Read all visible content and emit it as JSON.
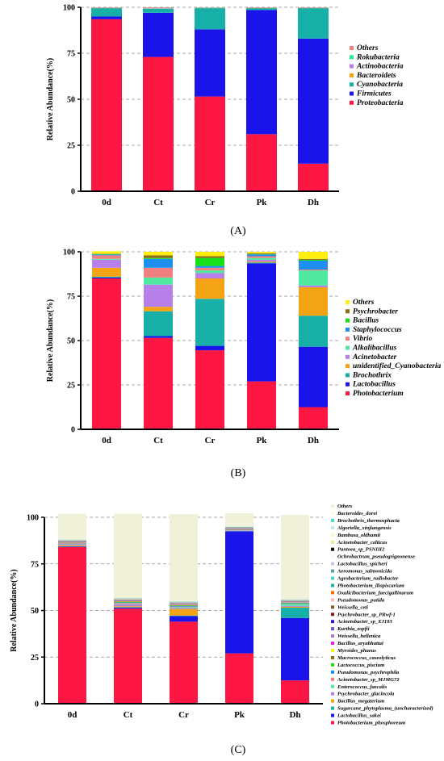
{
  "panel_labels": [
    "(A)",
    "(B)",
    "(C)"
  ],
  "chart_data": [
    {
      "type": "bar",
      "stacked": true,
      "ylabel": "Relative Abundance(%)",
      "ylim": [
        0,
        100
      ],
      "yticks": [
        0,
        25,
        50,
        75,
        100
      ],
      "grid": "dashed horizontal",
      "legend_position": "right",
      "categories": [
        "0d",
        "Ct",
        "Cr",
        "Pk",
        "Dh"
      ],
      "series": [
        {
          "name": "Proteobacteria",
          "color": "#ff1744",
          "values": [
            93.5,
            73,
            51.5,
            31,
            15
          ]
        },
        {
          "name": "Firmicutes",
          "color": "#1a14ea",
          "values": [
            1.5,
            24,
            36.5,
            67.5,
            68
          ]
        },
        {
          "name": "Cyanobacteria",
          "color": "#17b0a8",
          "values": [
            4.5,
            2.2,
            11.5,
            1,
            16.5
          ]
        },
        {
          "name": "Bacteroidets",
          "color": "#f4a314",
          "values": [
            0.1,
            0.1,
            0.1,
            0.1,
            0.1
          ]
        },
        {
          "name": "Actinobacteria",
          "color": "#b680e8",
          "values": [
            0.1,
            0.2,
            0.1,
            0.1,
            0.1
          ]
        },
        {
          "name": "Rokubacteria",
          "color": "#2ee89a",
          "values": [
            0.1,
            0.2,
            0.2,
            0.1,
            0.1
          ]
        },
        {
          "name": "Others",
          "color": "#f08080",
          "values": [
            0.2,
            0.3,
            0.1,
            0.2,
            0.2
          ]
        }
      ]
    },
    {
      "type": "bar",
      "stacked": true,
      "ylabel": "Relative Abundance(%)",
      "ylim": [
        0,
        100
      ],
      "yticks": [
        0,
        25,
        50,
        75,
        100
      ],
      "grid": "dashed horizontal",
      "legend_position": "right",
      "categories": [
        "0d",
        "Ct",
        "Cr",
        "Pk",
        "Dh"
      ],
      "series": [
        {
          "name": "Photobacterium",
          "color": "#ff1744",
          "values": [
            85,
            51.5,
            44.5,
            27,
            12.5
          ]
        },
        {
          "name": "Lactobacillus",
          "color": "#1a14ea",
          "values": [
            0.5,
            1,
            2.5,
            66.5,
            34
          ]
        },
        {
          "name": "Brochothrix",
          "color": "#17b0a8",
          "values": [
            0.5,
            14,
            26.5,
            0.5,
            17.5
          ]
        },
        {
          "name": "unidentified_Cyanobacteria",
          "color": "#f4a314",
          "values": [
            5,
            2.5,
            11.5,
            0.5,
            16
          ]
        },
        {
          "name": "Acinetobacter",
          "color": "#b680e8",
          "values": [
            4.5,
            12.5,
            3,
            1,
            1
          ]
        },
        {
          "name": "Alkalibacillus",
          "color": "#4ee8a0",
          "values": [
            0.5,
            4,
            1.5,
            1,
            8.5
          ]
        },
        {
          "name": "Vibrio",
          "color": "#f08080",
          "values": [
            2,
            5.5,
            1.5,
            1,
            0.5
          ]
        },
        {
          "name": "Staphylococcus",
          "color": "#1e8ff0",
          "values": [
            0.5,
            5,
            1,
            1,
            5
          ]
        },
        {
          "name": "Bacillus",
          "color": "#18e018",
          "values": [
            0.2,
            0.5,
            4.5,
            0.2,
            0.5
          ]
        },
        {
          "name": "Psychrobacter",
          "color": "#8a6d16",
          "values": [
            0.2,
            1.5,
            1,
            0.5,
            0.5
          ]
        },
        {
          "name": "Others",
          "color": "#ffee10",
          "values": [
            1.4,
            2,
            2.5,
            0.8,
            4
          ]
        }
      ]
    },
    {
      "type": "bar",
      "stacked": true,
      "ylabel": "Relative Abundance(%)",
      "ylim": [
        0,
        100
      ],
      "yticks": [
        0,
        25,
        50,
        75,
        100
      ],
      "grid": "dashed horizontal",
      "legend_position": "right",
      "categories": [
        "0d",
        "Ct",
        "Cr",
        "Pk",
        "Dh"
      ],
      "series": [
        {
          "name": "Photobacterium_phosphoreum",
          "color": "#ff1744",
          "values": [
            84,
            51,
            44,
            27,
            12.5
          ]
        },
        {
          "name": "Lactobacillus_sakei",
          "color": "#1a14ea",
          "values": [
            0.3,
            0.5,
            3,
            65.5,
            33.5
          ]
        },
        {
          "name": "Sugarcane_phytoplasma_(uncharacterized)",
          "color": "#17b0a8",
          "values": [
            0.2,
            0.3,
            0.3,
            0.1,
            5.5
          ]
        },
        {
          "name": "Bacillus_megaterium",
          "color": "#f4a314",
          "values": [
            0.5,
            0.5,
            3.5,
            0.1,
            0.5
          ]
        },
        {
          "name": "Psychrobacter_glacincola",
          "color": "#b680e8",
          "values": [
            0.5,
            1,
            0.5,
            0.1,
            0.5
          ]
        },
        {
          "name": "Enterococcus_faecalis",
          "color": "#4ee8a0",
          "values": [
            0.2,
            0.2,
            0.5,
            0.1,
            1
          ]
        },
        {
          "name": "Acinetobacter_sp_MJMG72",
          "color": "#f08080",
          "values": [
            0.3,
            0.5,
            0.3,
            0.1,
            0.2
          ]
        },
        {
          "name": "Pseudomonas_psychrophila",
          "color": "#1e8ff0",
          "values": [
            0.1,
            0.3,
            0.3,
            0.1,
            0.2
          ]
        },
        {
          "name": "Lactococcus_piscium",
          "color": "#18e018",
          "values": [
            0.1,
            0.2,
            0.3,
            0.1,
            0.2
          ]
        },
        {
          "name": "Macrococcus_caseolyticus",
          "color": "#8a6d16",
          "values": [
            0.1,
            0.3,
            0.2,
            0.1,
            0.1
          ]
        },
        {
          "name": "Myroides_phaeus",
          "color": "#ffee10",
          "values": [
            0.1,
            0.2,
            0.2,
            0.1,
            0.1
          ]
        },
        {
          "name": "Bacillus_aryabhattai",
          "color": "#e81ee8",
          "values": [
            0.1,
            0.1,
            0.2,
            0.1,
            0.1
          ]
        },
        {
          "name": "Weissella_hellenica",
          "color": "#a878d8",
          "values": [
            0.1,
            0.1,
            0.1,
            0.1,
            0.1
          ]
        },
        {
          "name": "Kurthia_zopfii",
          "color": "#6a5acd",
          "values": [
            0.1,
            0.1,
            0.1,
            0.1,
            0.1
          ]
        },
        {
          "name": "Acinetobacter_sp_XJ193",
          "color": "#2a20c0",
          "values": [
            0.1,
            0.1,
            0.1,
            0.1,
            0.1
          ]
        },
        {
          "name": "Psychrobacter_sp_PRwf-1",
          "color": "#8b1a1a",
          "values": [
            0.1,
            0.1,
            0.1,
            0.1,
            0.1
          ]
        },
        {
          "name": "Weissella_ceti",
          "color": "#8b5a2b",
          "values": [
            0.1,
            0.1,
            0.1,
            0.1,
            0.1
          ]
        },
        {
          "name": "Pseudomonas_putida",
          "color": "#ffb6b6",
          "values": [
            0.1,
            0.1,
            0.1,
            0.1,
            0.1
          ]
        },
        {
          "name": "Oxalicibacterium_faecigallinarum",
          "color": "#ff6a00",
          "values": [
            0.1,
            0.1,
            0.1,
            0.1,
            0.1
          ]
        },
        {
          "name": "Photobacterium_iliopiscarium",
          "color": "#20b2aa",
          "values": [
            0.1,
            0.1,
            0.1,
            0.1,
            0.1
          ]
        },
        {
          "name": "Agrobacterium_radiobacter",
          "color": "#48d1cc",
          "values": [
            0.1,
            0.1,
            0.1,
            0.1,
            0.1
          ]
        },
        {
          "name": "Aeromonas_salmonicida",
          "color": "#5f9ea0",
          "values": [
            0.1,
            0.1,
            0.1,
            0.1,
            0.1
          ]
        },
        {
          "name": "Lactobacillus_spicheri",
          "color": "#c0c8e8",
          "values": [
            0.1,
            0.1,
            0.1,
            0.1,
            0.1
          ]
        },
        {
          "name": "Ochrobactrum_pseudogrignonense",
          "color": "#f8f8f8",
          "values": [
            0.1,
            0.1,
            0.1,
            0.1,
            0.1
          ]
        },
        {
          "name": "Pantoea_sp_PSNIH2",
          "color": "#111111",
          "values": [
            0.1,
            0.1,
            0.1,
            0.1,
            0.1
          ]
        },
        {
          "name": "Acinetobacter_celticus",
          "color": "#f0e68c",
          "values": [
            0.1,
            0.1,
            0.1,
            0.1,
            0.1
          ]
        },
        {
          "name": "Bambusa_oldhamii",
          "color": "#f5f5dc",
          "values": [
            0.1,
            0.1,
            0.1,
            0.1,
            0.1
          ]
        },
        {
          "name": "Algoriella_xinjiangensis",
          "color": "#b8ecec",
          "values": [
            0.1,
            0.1,
            0.1,
            0.1,
            0.1
          ]
        },
        {
          "name": "Brochothrix_thermosphacta",
          "color": "#40e0d0",
          "values": [
            0.1,
            0.1,
            0.1,
            0.1,
            0.1
          ]
        },
        {
          "name": "Bacteroides_dorei",
          "color": "#fafae6",
          "values": [
            0.1,
            0.1,
            0.1,
            0.1,
            0.1
          ]
        },
        {
          "name": "Others",
          "color": "#f1f0d9",
          "values": [
            13.6,
            45.1,
            46.6,
            6.9,
            45.1
          ]
        }
      ]
    }
  ]
}
